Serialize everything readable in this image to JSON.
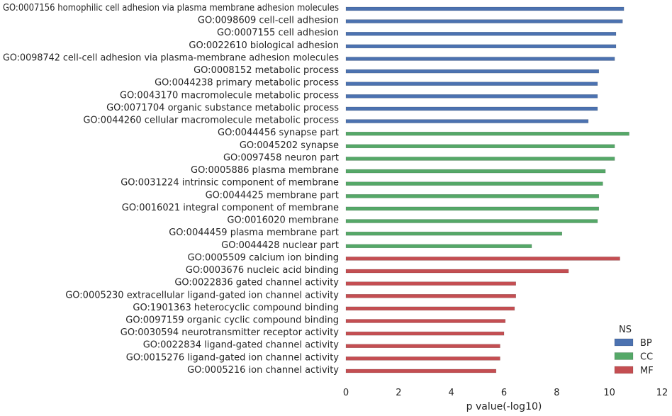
{
  "chart_data": {
    "type": "bar",
    "orientation": "horizontal",
    "xlabel": "p value(-log10)",
    "xlim": [
      0,
      12
    ],
    "xticks": [
      0,
      2,
      4,
      6,
      8,
      10,
      12
    ],
    "grid": false,
    "legend": {
      "title": "NS",
      "placement": "bottom-right",
      "items": [
        {
          "name": "BP",
          "color": "#4c72b0"
        },
        {
          "name": "CC",
          "color": "#55a868"
        },
        {
          "name": "MF",
          "color": "#c44e52"
        }
      ]
    },
    "bars": [
      {
        "label": "GO:0007156 homophilic cell adhesion via plasma membrane adhesion molecules",
        "value": 10.55,
        "ns": "BP"
      },
      {
        "label": "GO:0098609 cell-cell adhesion",
        "value": 10.5,
        "ns": "BP"
      },
      {
        "label": "GO:0007155 cell adhesion",
        "value": 10.25,
        "ns": "BP"
      },
      {
        "label": "GO:0022610 biological adhesion",
        "value": 10.25,
        "ns": "BP"
      },
      {
        "label": "GO:0098742 cell-cell adhesion via plasma-membrane adhesion molecules",
        "value": 10.2,
        "ns": "BP"
      },
      {
        "label": "GO:0008152 metabolic process",
        "value": 9.6,
        "ns": "BP"
      },
      {
        "label": "GO:0044238 primary metabolic process",
        "value": 9.55,
        "ns": "BP"
      },
      {
        "label": "GO:0043170 macromolecule metabolic process",
        "value": 9.55,
        "ns": "BP"
      },
      {
        "label": "GO:0071704 organic substance metabolic process",
        "value": 9.55,
        "ns": "BP"
      },
      {
        "label": "GO:0044260 cellular macromolecule metabolic process",
        "value": 9.2,
        "ns": "BP"
      },
      {
        "label": "GO:0044456 synapse part",
        "value": 10.75,
        "ns": "CC"
      },
      {
        "label": "GO:0045202 synapse",
        "value": 10.2,
        "ns": "CC"
      },
      {
        "label": "GO:0097458 neuron part",
        "value": 10.2,
        "ns": "CC"
      },
      {
        "label": "GO:0005886 plasma membrane",
        "value": 9.85,
        "ns": "CC"
      },
      {
        "label": "GO:0031224 intrinsic component of membrane",
        "value": 9.75,
        "ns": "CC"
      },
      {
        "label": "GO:0044425 membrane part",
        "value": 9.6,
        "ns": "CC"
      },
      {
        "label": "GO:0016021 integral component of membrane",
        "value": 9.6,
        "ns": "CC"
      },
      {
        "label": "GO:0016020 membrane",
        "value": 9.55,
        "ns": "CC"
      },
      {
        "label": "GO:0044459 plasma membrane part",
        "value": 8.2,
        "ns": "CC"
      },
      {
        "label": "GO:0044428 nuclear part",
        "value": 7.05,
        "ns": "CC"
      },
      {
        "label": "GO:0005509 calcium ion binding",
        "value": 10.4,
        "ns": "MF"
      },
      {
        "label": "GO:0003676 nucleic acid binding",
        "value": 8.45,
        "ns": "MF"
      },
      {
        "label": "GO:0022836 gated channel activity",
        "value": 6.45,
        "ns": "MF"
      },
      {
        "label": "GO:0005230 extracellular ligand-gated ion channel activity",
        "value": 6.45,
        "ns": "MF"
      },
      {
        "label": "GO:1901363 heterocyclic compound binding",
        "value": 6.4,
        "ns": "MF"
      },
      {
        "label": "GO:0097159 organic cyclic compound binding",
        "value": 6.05,
        "ns": "MF"
      },
      {
        "label": "GO:0030594 neurotransmitter receptor activity",
        "value": 6.0,
        "ns": "MF"
      },
      {
        "label": "GO:0022834 ligand-gated channel activity",
        "value": 5.85,
        "ns": "MF"
      },
      {
        "label": "GO:0015276 ligand-gated ion channel activity",
        "value": 5.85,
        "ns": "MF"
      },
      {
        "label": "GO:0005216 ion channel activity",
        "value": 5.7,
        "ns": "MF"
      }
    ]
  }
}
